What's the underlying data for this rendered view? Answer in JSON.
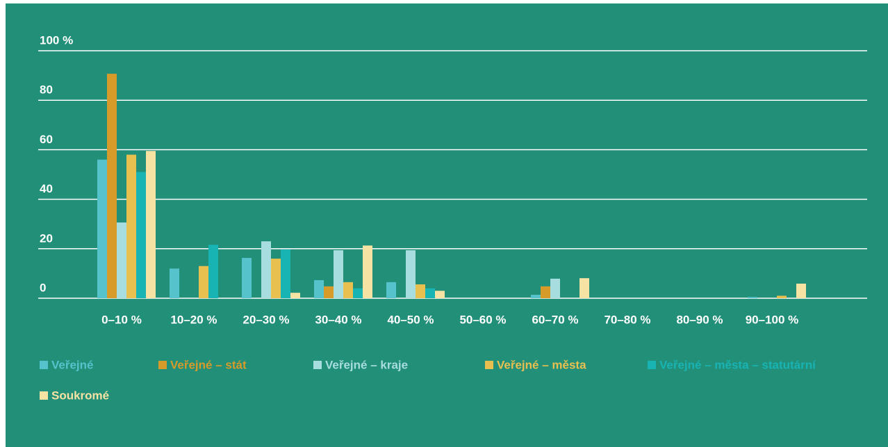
{
  "chart_data": {
    "type": "bar",
    "categories": [
      "0–10 %",
      "10–20 %",
      "20–30 %",
      "30–40 %",
      "40–50 %",
      "50–60 %",
      "60–70 %",
      "70–80 %",
      "80–90 %",
      "90–100 %"
    ],
    "series": [
      {
        "name": "Veřejné",
        "color": "#56c3cc",
        "values": [
          56,
          12,
          16.3,
          7.3,
          6.5,
          0,
          1.4,
          0,
          0,
          0.5
        ]
      },
      {
        "name": "Veřejné – stát",
        "color": "#d79b2a",
        "values": [
          90.7,
          0,
          0,
          4.8,
          0,
          0,
          4.8,
          0,
          0,
          0
        ]
      },
      {
        "name": "Veřejné – kraje",
        "color": "#a8dde0",
        "values": [
          30.6,
          0,
          23,
          19.4,
          19.4,
          0,
          7.9,
          0,
          0,
          0
        ]
      },
      {
        "name": "Veřejné – města",
        "color": "#e8c050",
        "values": [
          58,
          13,
          16,
          6.5,
          5.6,
          0,
          0,
          0,
          0,
          1
        ]
      },
      {
        "name": "Veřejné – města – statutární",
        "color": "#18b3b3",
        "values": [
          51,
          21.6,
          19.7,
          4,
          4,
          0,
          0,
          0,
          0,
          0
        ]
      },
      {
        "name": "Soukromé",
        "color": "#f6e3a3",
        "values": [
          59.5,
          0,
          2.2,
          21.3,
          3,
          0,
          8.1,
          0,
          0,
          5.9
        ]
      }
    ],
    "ylim": [
      0,
      100
    ],
    "yticks": [
      0,
      20,
      40,
      60,
      80,
      {
        "value": 100,
        "label": "100 %"
      }
    ],
    "grid": true
  }
}
